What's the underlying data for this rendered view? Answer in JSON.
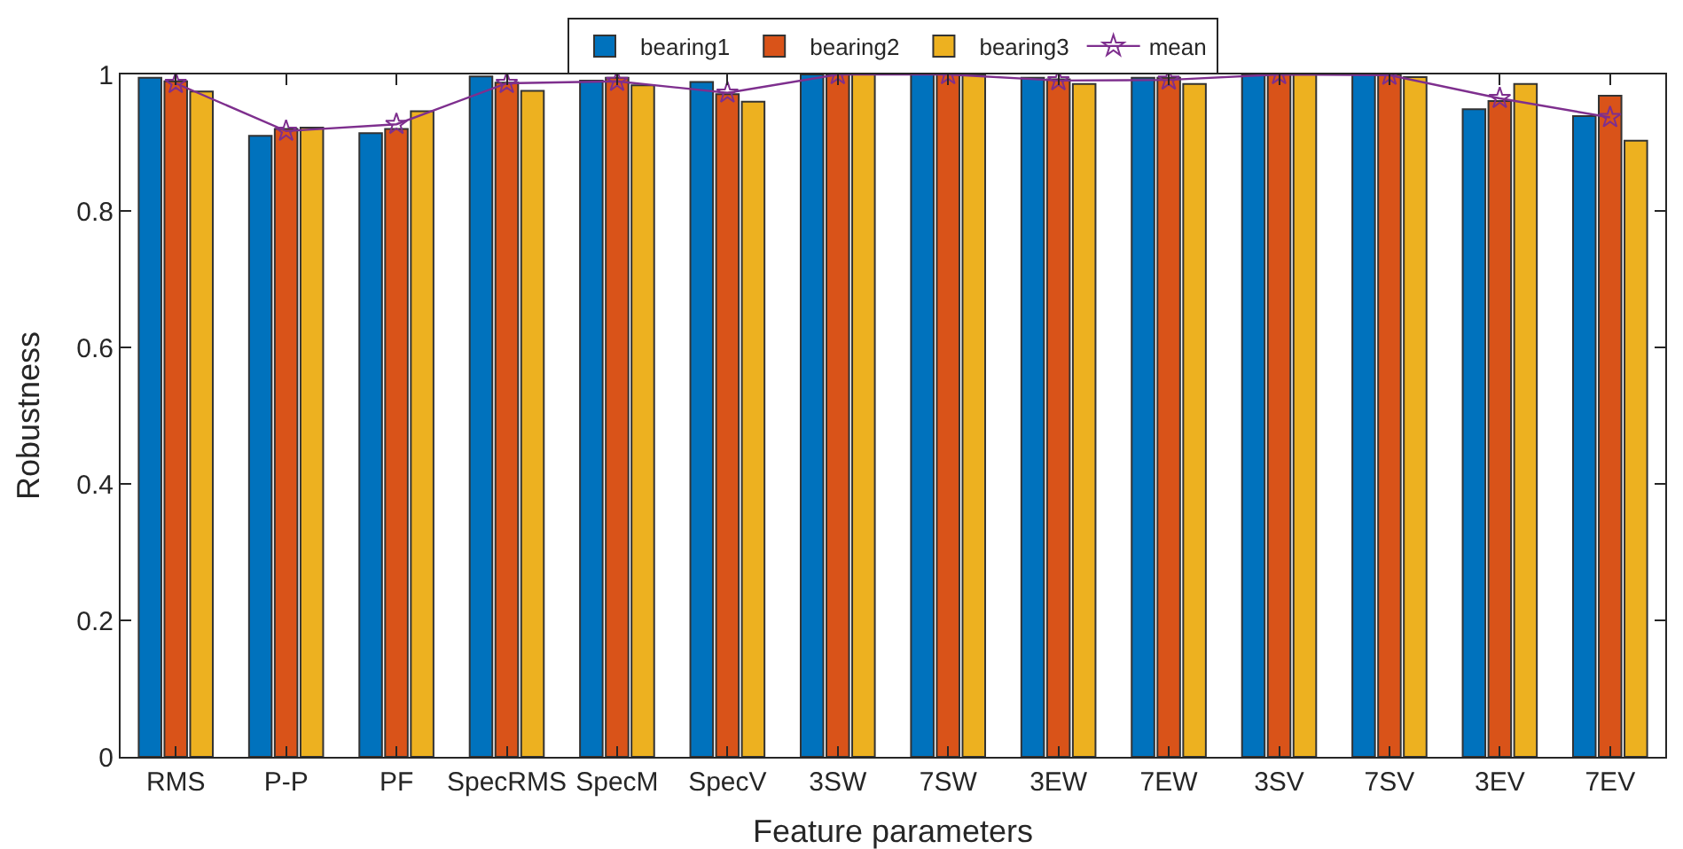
{
  "chart_data": {
    "type": "bar",
    "xlabel": "Feature parameters",
    "ylabel": "Robustness",
    "categories": [
      "RMS",
      "P-P",
      "PF",
      "SpecRMS",
      "SpecM",
      "SpecV",
      "3SW",
      "7SW",
      "3EW",
      "7EW",
      "3SV",
      "7SV",
      "3EV",
      "7EV"
    ],
    "series": [
      {
        "name": "bearing1",
        "color": "#0072bd",
        "values": [
          0.995,
          0.91,
          0.914,
          0.997,
          0.991,
          0.989,
          1,
          1,
          0.995,
          0.995,
          1,
          1,
          0.949,
          0.939
        ]
      },
      {
        "name": "bearing2",
        "color": "#d95319",
        "values": [
          0.99,
          0.92,
          0.92,
          0.988,
          0.995,
          0.971,
          1,
          1,
          0.993,
          0.995,
          1,
          1,
          0.961,
          0.969
        ]
      },
      {
        "name": "bearing3",
        "color": "#edb120",
        "values": [
          0.975,
          0.922,
          0.946,
          0.976,
          0.984,
          0.96,
          1,
          1,
          0.986,
          0.986,
          1,
          0.996,
          0.986,
          0.903
        ]
      },
      {
        "name": "mean",
        "type": "line",
        "color": "#7e2f8e",
        "marker": "star",
        "values": [
          0.987,
          0.917,
          0.927,
          0.987,
          0.99,
          0.973,
          1,
          1,
          0.991,
          0.992,
          1,
          0.999,
          0.965,
          0.937
        ]
      }
    ],
    "ylim": [
      0,
      1
    ],
    "yticks": [
      0,
      0.2,
      0.4,
      0.6,
      0.8,
      1
    ],
    "grid": false,
    "legend": "top"
  }
}
